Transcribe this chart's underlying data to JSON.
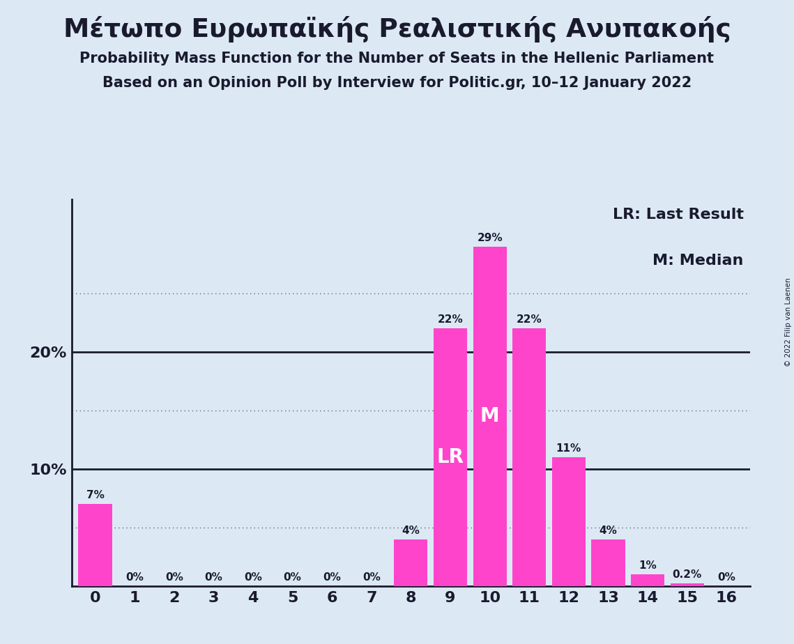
{
  "title1": "Μέτωπο Ευρωπαϊκής Ρεαλιστικής Ανυπακοής",
  "title2": "Probability Mass Function for the Number of Seats in the Hellenic Parliament",
  "title3": "Based on an Opinion Poll by Interview for Politic.gr, 10–12 January 2022",
  "copyright": "© 2022 Filip van Laenen",
  "seats": [
    0,
    1,
    2,
    3,
    4,
    5,
    6,
    7,
    8,
    9,
    10,
    11,
    12,
    13,
    14,
    15,
    16
  ],
  "probabilities": [
    7,
    0,
    0,
    0,
    0,
    0,
    0,
    0,
    4,
    22,
    29,
    22,
    11,
    4,
    1.0,
    0.2,
    0
  ],
  "bar_color": "#FF44CC",
  "background_color": "#DCE9F5",
  "label_color": "#1a1a2e",
  "grid_color": "#666666",
  "lr_seat": 9,
  "median_seat": 10,
  "lr_label": "LR",
  "median_label": "M",
  "legend_lr": "LR: Last Result",
  "legend_m": "M: Median",
  "ylim": [
    0,
    33
  ],
  "dotted_lines": [
    5,
    15,
    25
  ],
  "solid_lines": [
    10,
    20
  ]
}
